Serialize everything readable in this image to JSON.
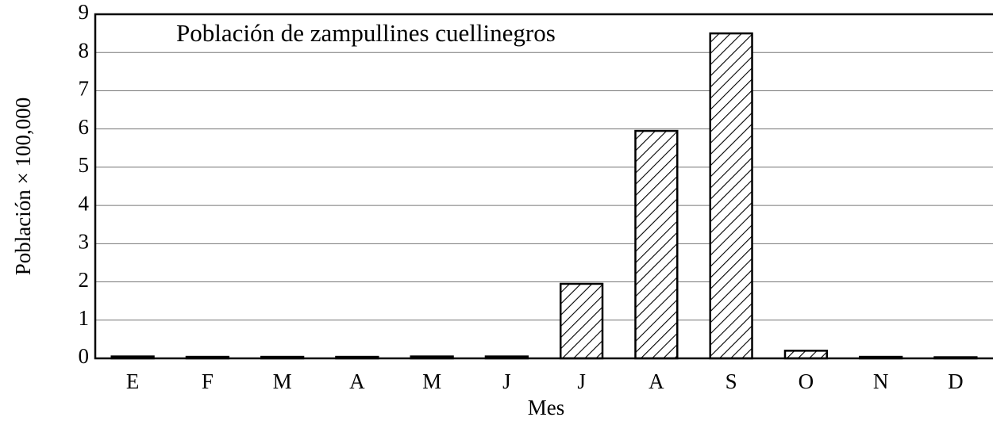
{
  "chart_data": {
    "type": "bar",
    "title": "Población de zampullines cuellinegros",
    "x_label": "Mes",
    "y_label": "Población × 100,000",
    "categories": [
      "E",
      "F",
      "M",
      "A",
      "M",
      "J",
      "J",
      "A",
      "S",
      "O",
      "N",
      "D"
    ],
    "values": [
      0.05,
      0.04,
      0.04,
      0.04,
      0.05,
      0.05,
      1.95,
      5.95,
      8.5,
      0.2,
      0.04,
      0.03
    ],
    "color": "#000000",
    "ylim": [
      0,
      9
    ],
    "yticks": [
      0,
      1,
      2,
      3,
      4,
      5,
      6,
      7,
      8,
      9
    ],
    "grid": true
  }
}
